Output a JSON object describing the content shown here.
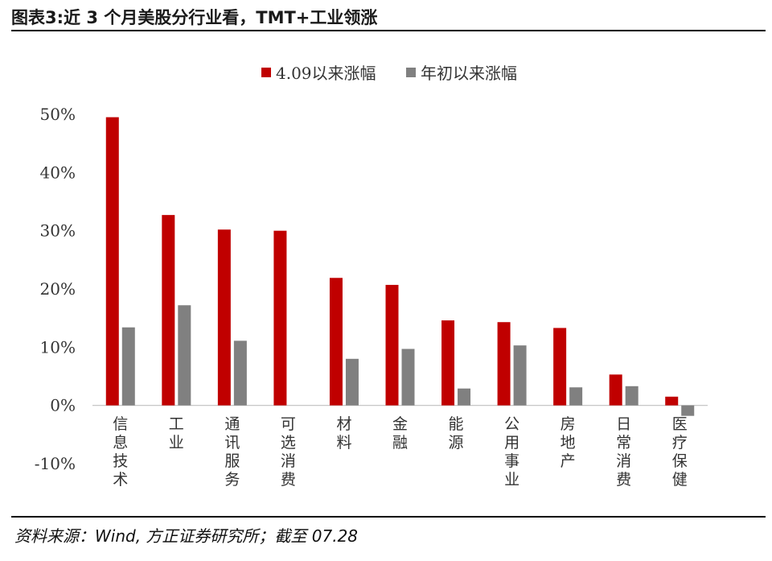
{
  "figure": {
    "title": "图表3:近 3 个月美股分行业看，TMT+工业领涨",
    "source": "资料来源：Wind, 方正证券研究所；截至 07.28"
  },
  "chart_data": {
    "type": "bar",
    "categories": [
      "信息技术",
      "工业",
      "通讯服务",
      "可选消费",
      "材料",
      "金融",
      "能源",
      "公用事业",
      "房地产",
      "日常消费",
      "医疗保健"
    ],
    "series": [
      {
        "name": "4.09以来涨幅",
        "color": "#c00000",
        "values": [
          49.5,
          32.7,
          30.2,
          30.0,
          21.9,
          20.7,
          14.6,
          14.3,
          13.3,
          5.3,
          1.5
        ]
      },
      {
        "name": "年初以来涨幅",
        "color": "#808080",
        "values": [
          13.4,
          17.2,
          11.1,
          0.0,
          8.0,
          9.7,
          2.9,
          10.3,
          3.1,
          3.3,
          -1.8
        ]
      }
    ],
    "ylim": [
      -10,
      50
    ],
    "yticks": [
      -10,
      0,
      10,
      20,
      30,
      40,
      50
    ],
    "ytick_labels": [
      "-10%",
      "0%",
      "10%",
      "20%",
      "30%",
      "40%",
      "50%"
    ],
    "legend_position": "top-center",
    "grid": false
  }
}
